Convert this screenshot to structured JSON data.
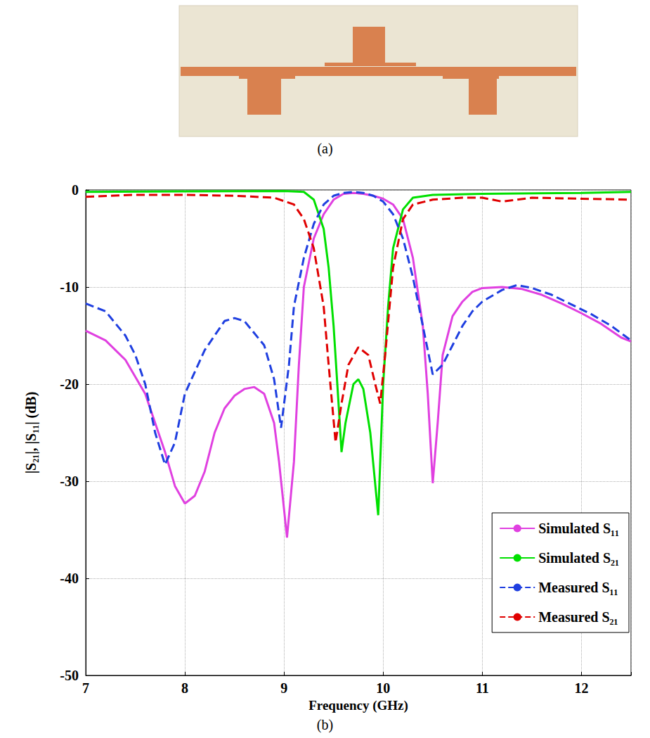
{
  "captions": [
    "(a)",
    "(b)"
  ],
  "chart_data": {
    "type": "line",
    "xlabel": "Frequency (GHz)",
    "ylabel": "|S₂₁|, |S₁₁| (dB)",
    "xlim": [
      7,
      12.5
    ],
    "xticks": [
      7,
      8,
      9,
      10,
      11,
      12
    ],
    "ylim": [
      -50,
      0
    ],
    "yticks": [
      -50,
      -40,
      -30,
      -20,
      -10,
      0
    ],
    "grid": true,
    "legend": "lower right",
    "series": [
      {
        "name": "Simulated S₁₁",
        "color": "#e040e0",
        "line_style": "solid",
        "x": [
          7.0,
          7.2,
          7.4,
          7.6,
          7.8,
          7.9,
          8.0,
          8.1,
          8.2,
          8.3,
          8.4,
          8.5,
          8.6,
          8.7,
          8.8,
          8.9,
          8.95,
          9.03,
          9.1,
          9.15,
          9.2,
          9.3,
          9.4,
          9.5,
          9.6,
          9.7,
          9.8,
          9.9,
          10.0,
          10.1,
          10.2,
          10.3,
          10.4,
          10.45,
          10.5,
          10.55,
          10.6,
          10.7,
          10.8,
          10.9,
          11.0,
          11.2,
          11.4,
          11.6,
          11.8,
          12.0,
          12.2,
          12.4,
          12.5
        ],
        "values": [
          -14.5,
          -15.5,
          -17.5,
          -21,
          -27,
          -30.5,
          -32.3,
          -31.5,
          -29,
          -25,
          -22.5,
          -21.2,
          -20.5,
          -20.3,
          -21,
          -24,
          -28,
          -35.8,
          -28,
          -18,
          -10,
          -5,
          -2.5,
          -1,
          -0.4,
          -0.3,
          -0.4,
          -0.6,
          -0.9,
          -1.5,
          -3,
          -7,
          -14,
          -21,
          -30.2,
          -24,
          -17,
          -13,
          -11.5,
          -10.5,
          -10.1,
          -10,
          -10.2,
          -10.8,
          -11.7,
          -12.7,
          -13.8,
          -15.2,
          -15.6
        ]
      },
      {
        "name": "Simulated S₂₁",
        "color": "#00e000",
        "line_style": "solid",
        "x": [
          7.0,
          8.0,
          9.0,
          9.2,
          9.3,
          9.4,
          9.45,
          9.5,
          9.55,
          9.58,
          9.62,
          9.7,
          9.75,
          9.8,
          9.87,
          9.95,
          10.0,
          10.05,
          10.1,
          10.2,
          10.3,
          10.5,
          11.0,
          12.0,
          12.5
        ],
        "values": [
          -0.2,
          -0.15,
          -0.1,
          -0.2,
          -1,
          -4,
          -8,
          -14,
          -22,
          -27,
          -24,
          -20,
          -19.5,
          -20.5,
          -25,
          -33.5,
          -20,
          -12,
          -6,
          -2,
          -0.8,
          -0.5,
          -0.4,
          -0.3,
          -0.2
        ]
      },
      {
        "name": "Measured S₁₁",
        "color": "#1f3fe0",
        "line_style": "dashed",
        "x": [
          7.0,
          7.2,
          7.4,
          7.5,
          7.6,
          7.7,
          7.8,
          7.9,
          8.0,
          8.2,
          8.4,
          8.5,
          8.6,
          8.8,
          8.9,
          8.97,
          9.05,
          9.1,
          9.2,
          9.3,
          9.4,
          9.5,
          9.6,
          9.7,
          9.8,
          9.9,
          10.0,
          10.1,
          10.2,
          10.3,
          10.4,
          10.5,
          10.6,
          10.7,
          10.8,
          10.9,
          11.0,
          11.2,
          11.35,
          11.5,
          11.7,
          11.9,
          12.1,
          12.3,
          12.5
        ],
        "values": [
          -11.7,
          -12.5,
          -15,
          -17,
          -20,
          -25,
          -28.3,
          -26,
          -21,
          -16.5,
          -13.5,
          -13.2,
          -13.5,
          -16,
          -19.5,
          -24.5,
          -18,
          -12,
          -7,
          -3.5,
          -1.5,
          -0.6,
          -0.3,
          -0.2,
          -0.3,
          -0.6,
          -1.2,
          -2.5,
          -5,
          -9,
          -14,
          -19,
          -18,
          -16,
          -14,
          -12.5,
          -11.5,
          -10.3,
          -9.8,
          -10.1,
          -10.8,
          -11.8,
          -12.8,
          -14,
          -15.5
        ]
      },
      {
        "name": "Measured S₂₁",
        "color": "#e00000",
        "line_style": "dashed",
        "x": [
          7.0,
          7.5,
          8.0,
          8.5,
          8.9,
          9.1,
          9.2,
          9.3,
          9.4,
          9.45,
          9.52,
          9.58,
          9.65,
          9.75,
          9.85,
          9.92,
          9.97,
          10.02,
          10.1,
          10.2,
          10.3,
          10.5,
          10.8,
          11.0,
          11.2,
          11.5,
          12.0,
          12.5
        ],
        "values": [
          -0.7,
          -0.5,
          -0.5,
          -0.6,
          -0.8,
          -1.5,
          -3,
          -6,
          -12,
          -18,
          -26,
          -22,
          -18,
          -16.2,
          -17,
          -20,
          -22,
          -17,
          -8,
          -3,
          -1.5,
          -1,
          -0.8,
          -0.8,
          -1.2,
          -0.8,
          -0.9,
          -1.0
        ]
      }
    ]
  }
}
